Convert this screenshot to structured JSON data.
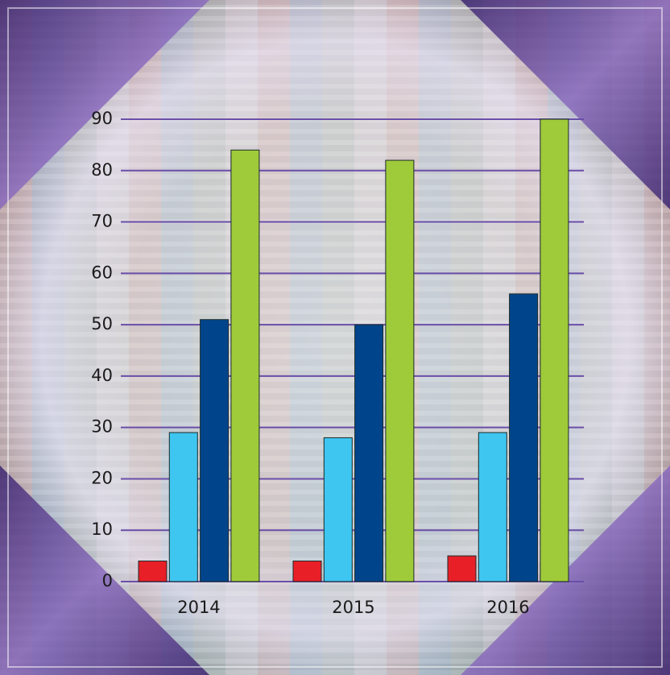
{
  "chart_data": {
    "type": "bar",
    "categories": [
      "2014",
      "2015",
      "2016"
    ],
    "series": [
      {
        "color": "#e81f27",
        "values": [
          4,
          4,
          5
        ]
      },
      {
        "color": "#3ec6f0",
        "values": [
          29,
          28,
          29
        ]
      },
      {
        "color": "#00458b",
        "values": [
          51,
          50,
          56
        ]
      },
      {
        "color": "#9fcb3a",
        "values": [
          84,
          82,
          90
        ]
      }
    ],
    "ylim": [
      0,
      90
    ],
    "yticks": [
      0,
      10,
      20,
      30,
      40,
      50,
      60,
      70,
      80,
      90
    ],
    "grid": true,
    "grid_color": "#6a4ea8"
  }
}
